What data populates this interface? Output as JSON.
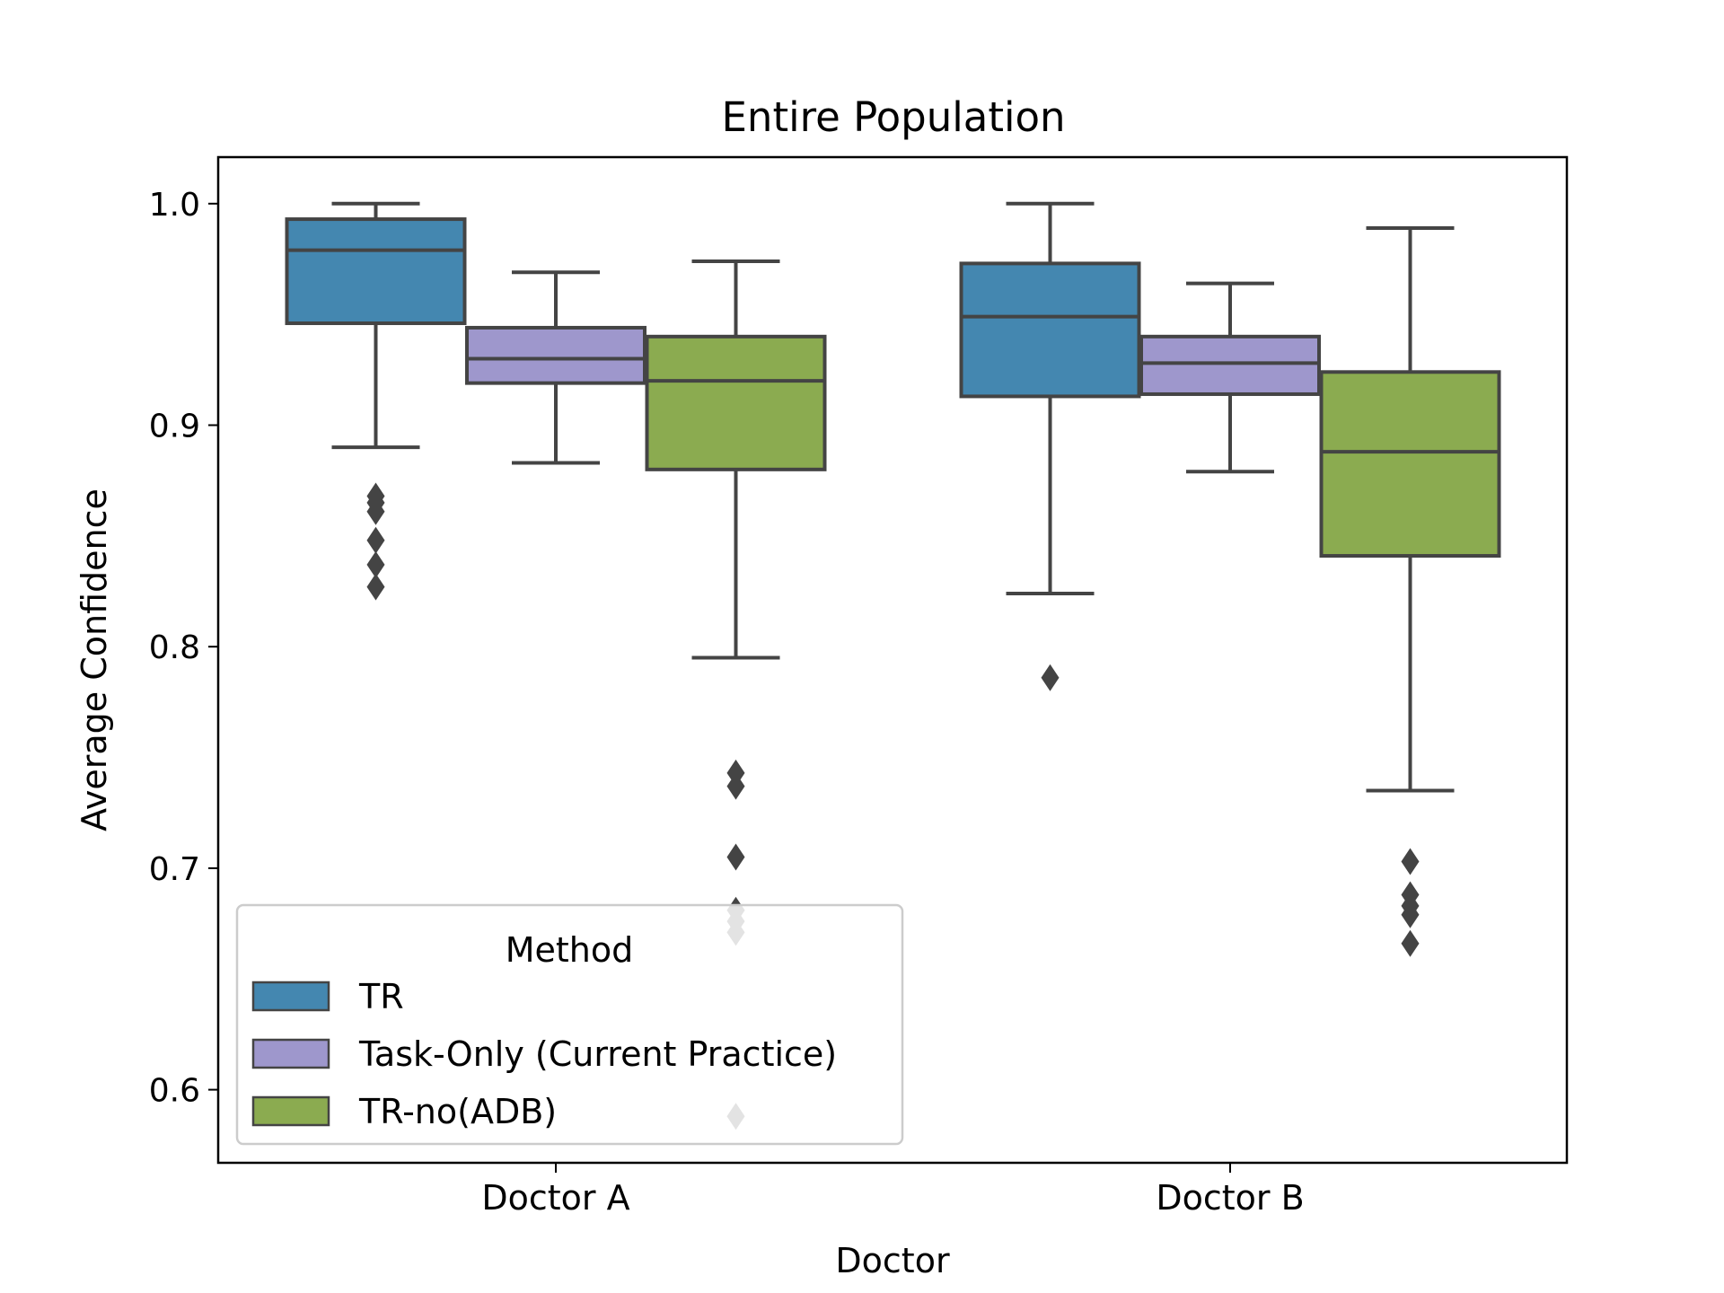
{
  "chart_data": {
    "type": "box",
    "title": "Entire Population",
    "xlabel": "Doctor",
    "ylabel": "Average Confidence",
    "categories": [
      "Doctor A",
      "Doctor B"
    ],
    "ylim": [
      0.567,
      1.021
    ],
    "yticks": [
      0.6,
      0.7,
      0.8,
      0.9,
      1.0
    ],
    "grid": false,
    "legend": {
      "title": "Method",
      "placement": "lower-left"
    },
    "series": [
      {
        "name": "TR",
        "color": "#4487b0",
        "boxes": [
          {
            "whisker_low": 0.89,
            "q1": 0.946,
            "median": 0.979,
            "q3": 0.993,
            "whisker_high": 1.0,
            "outliers": [
              0.868,
              0.865,
              0.861,
              0.848,
              0.837,
              0.827
            ]
          },
          {
            "whisker_low": 0.824,
            "q1": 0.913,
            "median": 0.949,
            "q3": 0.973,
            "whisker_high": 1.0,
            "outliers": [
              0.786
            ]
          }
        ]
      },
      {
        "name": "Task-Only (Current Practice)",
        "color": "#9e97cc",
        "boxes": [
          {
            "whisker_low": 0.883,
            "q1": 0.919,
            "median": 0.93,
            "q3": 0.944,
            "whisker_high": 0.969,
            "outliers": []
          },
          {
            "whisker_low": 0.879,
            "q1": 0.914,
            "median": 0.928,
            "q3": 0.94,
            "whisker_high": 0.964,
            "outliers": []
          }
        ]
      },
      {
        "name": "TR-no(ADB)",
        "color": "#8bab50",
        "boxes": [
          {
            "whisker_low": 0.795,
            "q1": 0.88,
            "median": 0.92,
            "q3": 0.94,
            "whisker_high": 0.974,
            "outliers": [
              0.743,
              0.737,
              0.705,
              0.681,
              0.676,
              0.671,
              0.588
            ]
          },
          {
            "whisker_low": 0.735,
            "q1": 0.841,
            "median": 0.888,
            "q3": 0.924,
            "whisker_high": 0.989,
            "outliers": [
              0.703,
              0.688,
              0.683,
              0.679,
              0.666
            ]
          }
        ]
      }
    ]
  }
}
